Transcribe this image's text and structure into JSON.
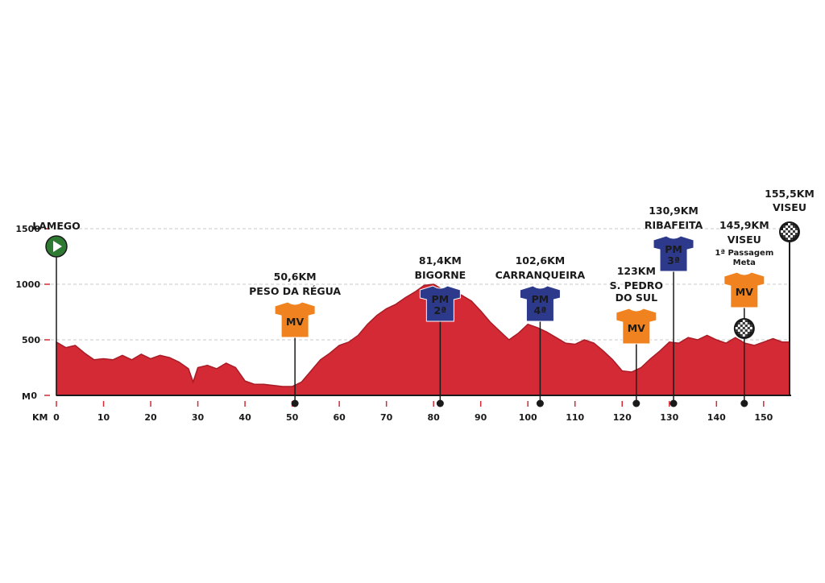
{
  "chart_data": {
    "type": "area",
    "title": "",
    "xlabel": "KM",
    "ylabel": "M",
    "xlim": [
      0,
      155.5
    ],
    "ylim": [
      0,
      1700
    ],
    "x_ticks": [
      0,
      10,
      20,
      30,
      40,
      50,
      60,
      70,
      80,
      90,
      100,
      110,
      120,
      130,
      140,
      150
    ],
    "y_ticks": [
      0,
      500,
      1000,
      1500
    ],
    "y_tick_labels": [
      "0",
      "500",
      "1000",
      "1500"
    ],
    "grid": "dashed horizontal lines at 500, 1000, 1500",
    "colors": {
      "profile_fill": "#d42a35",
      "profile_edge": "#b01e28",
      "mv_jersey": "#f0831f",
      "pm_jersey": "#2d3a8c",
      "start": "#2f7a32",
      "axis": "#1a1a1a",
      "tick": "#d42a35"
    },
    "elevation": {
      "x": [
        0,
        2,
        4,
        6,
        8,
        10,
        12,
        14,
        16,
        18,
        20,
        22,
        24,
        26,
        28,
        29,
        30,
        32,
        34,
        36,
        38,
        40,
        42,
        44,
        46,
        48,
        50,
        52,
        54,
        56,
        58,
        60,
        62,
        64,
        66,
        68,
        70,
        72,
        74,
        76,
        78,
        80,
        82,
        84,
        86,
        88,
        90,
        92,
        94,
        96,
        98,
        100,
        102,
        104,
        106,
        108,
        110,
        112,
        114,
        116,
        118,
        120,
        122,
        123,
        124,
        126,
        128,
        130,
        132,
        134,
        136,
        138,
        140,
        142,
        144,
        146,
        148,
        150,
        152,
        154,
        155.5
      ],
      "y": [
        480,
        430,
        450,
        380,
        320,
        330,
        320,
        360,
        320,
        370,
        330,
        360,
        340,
        300,
        240,
        120,
        250,
        270,
        240,
        290,
        250,
        130,
        100,
        100,
        90,
        80,
        80,
        120,
        220,
        320,
        380,
        450,
        480,
        540,
        640,
        720,
        780,
        820,
        880,
        930,
        990,
        1000,
        950,
        940,
        900,
        850,
        760,
        660,
        580,
        500,
        560,
        640,
        610,
        570,
        520,
        470,
        460,
        500,
        470,
        400,
        320,
        220,
        210,
        230,
        250,
        330,
        400,
        480,
        470,
        520,
        500,
        540,
        500,
        470,
        520,
        470,
        450,
        480,
        510,
        480,
        480
      ]
    },
    "markers": [
      {
        "km": 0,
        "type": "start",
        "label": "LAMEGO"
      },
      {
        "km": 50.6,
        "type": "MV",
        "km_label": "50,6KM",
        "name": "PESO DA RÉGUA"
      },
      {
        "km": 81.4,
        "type": "PM",
        "category": "2ª",
        "km_label": "81,4KM",
        "name": "BIGORNE"
      },
      {
        "km": 102.6,
        "type": "PM",
        "category": "4ª",
        "km_label": "102,6KM",
        "name": "CARRANQUEIRA"
      },
      {
        "km": 123,
        "type": "MV",
        "km_label": "123KM",
        "name": "S. PEDRO",
        "name2": "DO SUL"
      },
      {
        "km": 130.9,
        "type": "PM",
        "category": "3ª",
        "km_label": "130,9KM",
        "name": "RIBAFEITA"
      },
      {
        "km": 145.9,
        "type": "MV",
        "km_label": "145,9KM",
        "name": "VISEU",
        "sub1": "1ª Passagem",
        "sub2": "Meta"
      },
      {
        "km": 155.5,
        "type": "finish",
        "km_label": "155,5KM",
        "name": "VISEU"
      }
    ]
  }
}
